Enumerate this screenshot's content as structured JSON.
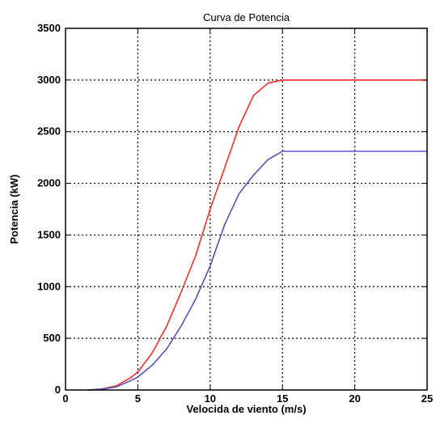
{
  "chart_data": {
    "type": "line",
    "title": "Curva de Potencia",
    "xlabel": "Velocida de viento (m/s)",
    "ylabel": "Potencia (kW)",
    "xlim": [
      0,
      25
    ],
    "ylim": [
      0,
      3500
    ],
    "xticks": [
      0,
      5,
      10,
      15,
      20,
      25
    ],
    "yticks": [
      0,
      500,
      1000,
      1500,
      2000,
      2500,
      3000,
      3500
    ],
    "xtick_labels": [
      "0",
      "5",
      "10",
      "15",
      "20",
      "25"
    ],
    "ytick_labels": [
      "0",
      "500",
      "1000",
      "1500",
      "2000",
      "2500",
      "3000",
      "3500"
    ],
    "grid": true,
    "grid_style": "dotted",
    "legend": "none",
    "series": [
      {
        "color": "#ff2a2a",
        "x": [
          1.5,
          2.5,
          3.5,
          4.5,
          5,
          6,
          7,
          8,
          9,
          10,
          11,
          12,
          13,
          14,
          15,
          25
        ],
        "y": [
          0,
          10,
          40,
          120,
          175,
          360,
          620,
          950,
          1300,
          1750,
          2150,
          2550,
          2850,
          2970,
          3000,
          3000
        ]
      },
      {
        "color": "#5555bb",
        "x": [
          1.5,
          2.5,
          3.5,
          4.5,
          5,
          6,
          7,
          8,
          9,
          10,
          11,
          12,
          13,
          14,
          15,
          25
        ],
        "y": [
          0,
          8,
          30,
          90,
          125,
          240,
          400,
          620,
          880,
          1200,
          1600,
          1900,
          2080,
          2230,
          2310,
          2310
        ]
      }
    ]
  }
}
